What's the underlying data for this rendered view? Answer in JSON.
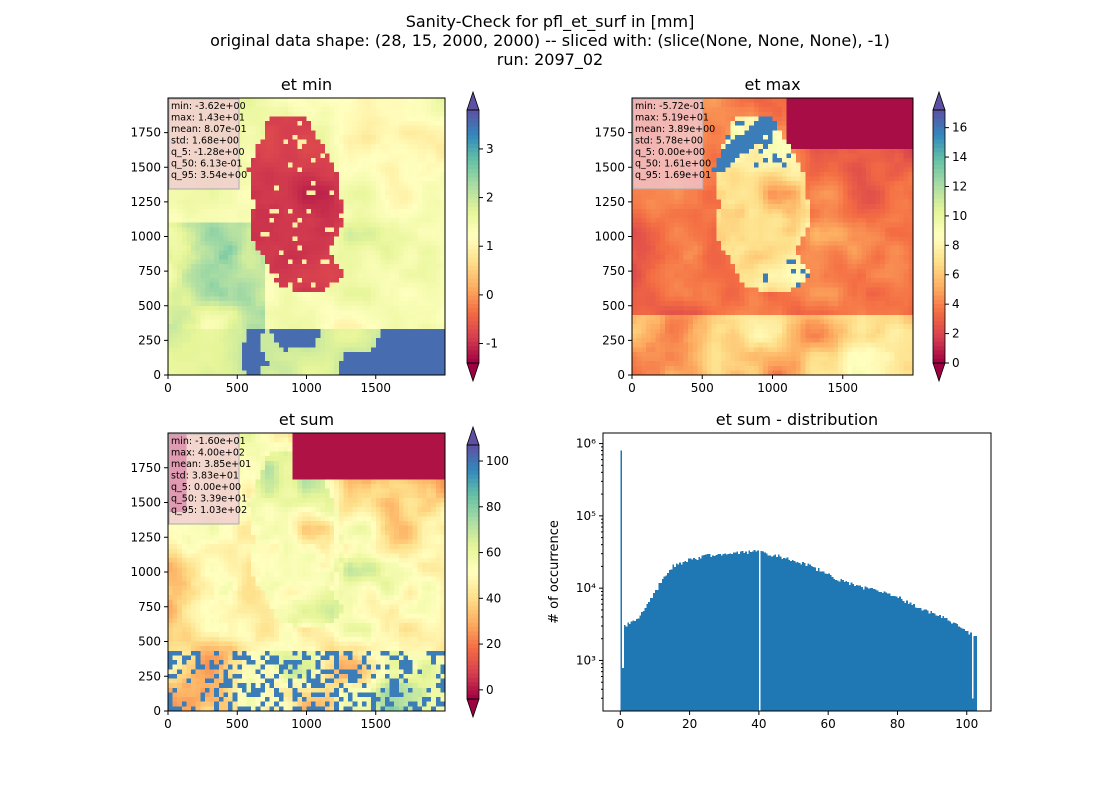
{
  "figure": {
    "title_lines": [
      "Sanity-Check for pfl_et_surf in [mm]",
      "original data shape: (28, 15, 2000, 2000) -- sliced with: (slice(None, None, None), -1)",
      "run: 2097_02"
    ]
  },
  "colors": {
    "hist_bar": "#1f77b4",
    "stats_box": "#f0c8d6",
    "colormap": "Spectral"
  },
  "chart_data": [
    {
      "type": "heatmap",
      "title": "et min",
      "xlabel": "",
      "ylabel": "",
      "xlim": [
        0,
        2000
      ],
      "ylim": [
        0,
        2000
      ],
      "x_ticks": [
        0,
        500,
        1000,
        1500
      ],
      "y_ticks": [
        0,
        250,
        500,
        750,
        1000,
        1250,
        1500,
        1750
      ],
      "colorbar": {
        "range": [
          -1.4,
          3.8
        ],
        "ticks": [
          -1,
          0,
          1,
          2,
          3
        ],
        "extend": "both",
        "colormap": "Spectral"
      },
      "stats": [
        "min: -3.62e+00",
        "max: 1.43e+01",
        "mean: 8.07e-01",
        "std: 1.68e+00",
        "q_5: -1.28e+00",
        "q_50: 6.13e-01",
        "q_95: 3.54e+00"
      ]
    },
    {
      "type": "heatmap",
      "title": "et max",
      "xlabel": "",
      "ylabel": "",
      "xlim": [
        0,
        2000
      ],
      "ylim": [
        0,
        2000
      ],
      "x_ticks": [
        0,
        500,
        1000,
        1500
      ],
      "y_ticks": [
        0,
        250,
        500,
        750,
        1000,
        1250,
        1500,
        1750
      ],
      "colorbar": {
        "range": [
          0,
          17.2
        ],
        "ticks": [
          0,
          2,
          4,
          6,
          8,
          10,
          12,
          14,
          16
        ],
        "extend": "both",
        "colormap": "Spectral"
      },
      "stats": [
        "min: -5.72e-01",
        "max: 5.19e+01",
        "mean: 3.89e+00",
        "std: 5.78e+00",
        "q_5: 0.00e+00",
        "q_50: 1.61e+00",
        "q_95: 1.69e+01"
      ]
    },
    {
      "type": "heatmap",
      "title": "et sum",
      "xlabel": "",
      "ylabel": "",
      "xlim": [
        0,
        2000
      ],
      "ylim": [
        0,
        2000
      ],
      "x_ticks": [
        0,
        500,
        1000,
        1500
      ],
      "y_ticks": [
        0,
        250,
        500,
        750,
        1000,
        1250,
        1500,
        1750
      ],
      "colorbar": {
        "range": [
          -4,
          107
        ],
        "ticks": [
          0,
          20,
          40,
          60,
          80,
          100
        ],
        "extend": "both",
        "colormap": "Spectral"
      },
      "stats": [
        "min: -1.60e+01",
        "max: 4.00e+02",
        "mean: 3.85e+01",
        "std: 3.83e+01",
        "q_5: 0.00e+00",
        "q_50: 3.39e+01",
        "q_95: 1.03e+02"
      ]
    },
    {
      "type": "bar",
      "title": "et sum - distribution",
      "xlabel": "",
      "ylabel": "# of occurrence",
      "yscale": "log",
      "xlim": [
        -5,
        107
      ],
      "ylim": [
        200,
        1400000
      ],
      "x_ticks": [
        0,
        20,
        40,
        60,
        80,
        100
      ],
      "y_ticks": [
        1000,
        10000,
        100000,
        1000000
      ],
      "y_tick_labels": [
        "10³",
        "10⁴",
        "10⁵",
        "10⁶"
      ],
      "bin_width": 0.5,
      "outlier_bins": [
        {
          "x": 0.0,
          "value": 800000
        },
        {
          "x": 40.0,
          "value": 200
        },
        {
          "x": 101.5,
          "value": 300
        }
      ],
      "profile": [
        {
          "x": 0.5,
          "value": 800
        },
        {
          "x": 1.0,
          "value": 3000
        },
        {
          "x": 2.0,
          "value": 3200
        },
        {
          "x": 4.0,
          "value": 3600
        },
        {
          "x": 6.0,
          "value": 4500
        },
        {
          "x": 8.0,
          "value": 6500
        },
        {
          "x": 10.0,
          "value": 9000
        },
        {
          "x": 12.0,
          "value": 14000
        },
        {
          "x": 15.0,
          "value": 20000
        },
        {
          "x": 20.0,
          "value": 25000
        },
        {
          "x": 25.0,
          "value": 28000
        },
        {
          "x": 30.0,
          "value": 30000
        },
        {
          "x": 35.0,
          "value": 31000
        },
        {
          "x": 40.0,
          "value": 32000
        },
        {
          "x": 45.0,
          "value": 28000
        },
        {
          "x": 50.0,
          "value": 24000
        },
        {
          "x": 55.0,
          "value": 20000
        },
        {
          "x": 60.0,
          "value": 15000
        },
        {
          "x": 65.0,
          "value": 12000
        },
        {
          "x": 70.0,
          "value": 10000
        },
        {
          "x": 75.0,
          "value": 9000
        },
        {
          "x": 80.0,
          "value": 7500
        },
        {
          "x": 85.0,
          "value": 5500
        },
        {
          "x": 90.0,
          "value": 4500
        },
        {
          "x": 95.0,
          "value": 3500
        },
        {
          "x": 100.0,
          "value": 2500
        },
        {
          "x": 102.5,
          "value": 2200
        }
      ]
    }
  ]
}
